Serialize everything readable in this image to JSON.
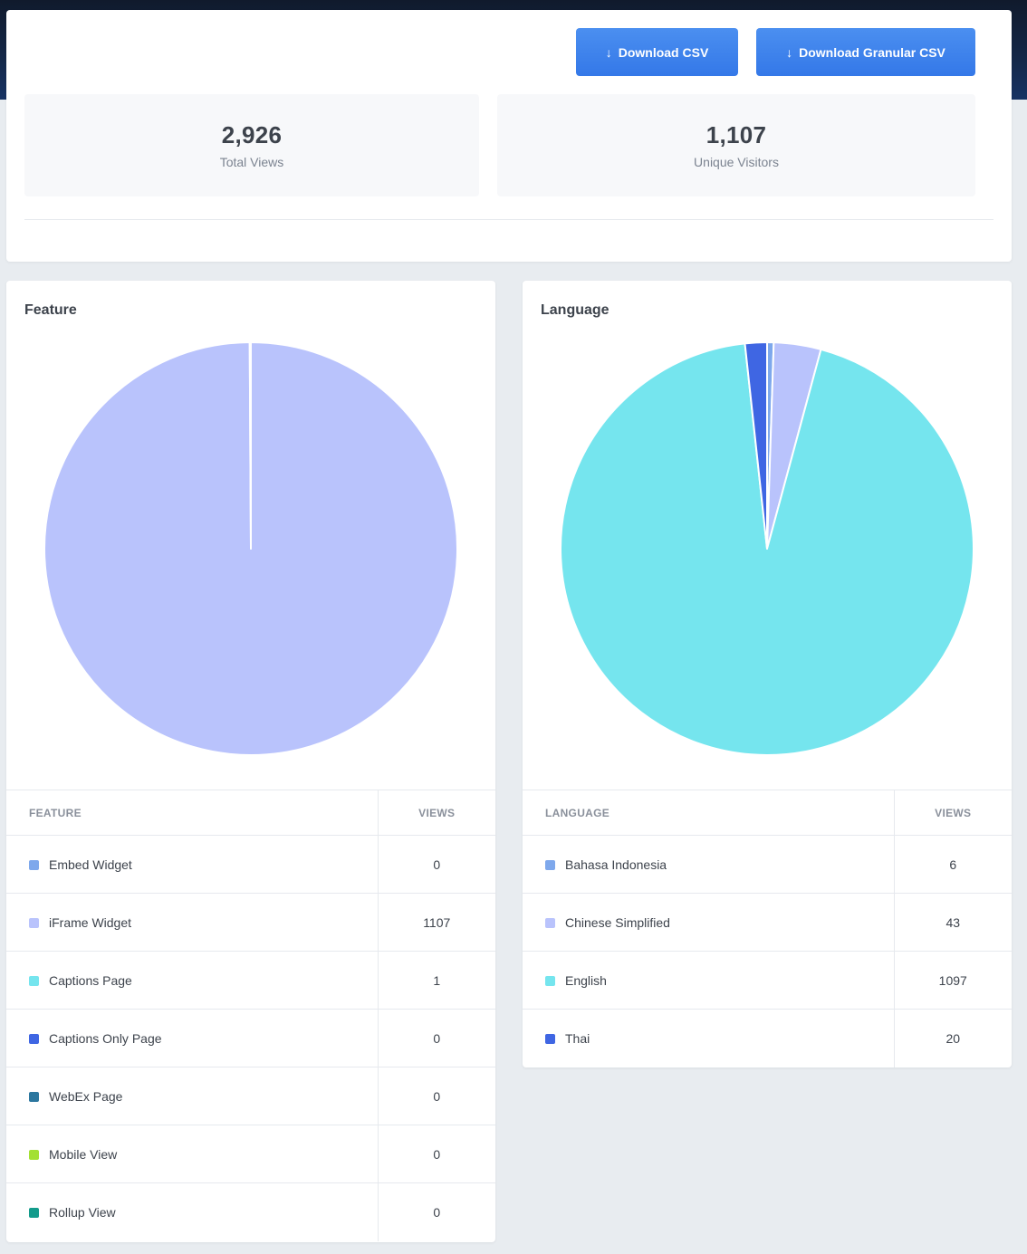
{
  "actions": {
    "download_csv_label": "Download CSV",
    "download_granular_label": "Download Granular CSV",
    "arrow_icon": "arrow-down-icon"
  },
  "stats": {
    "total_views": {
      "value": "2,926",
      "label": "Total Views"
    },
    "unique_visitors": {
      "value": "1,107",
      "label": "Unique Visitors"
    }
  },
  "feature": {
    "title": "Feature",
    "table_headers": {
      "name": "Feature",
      "views": "Views"
    },
    "rows": [
      {
        "name": "Embed Widget",
        "views": "0",
        "color": "#7ea8ec"
      },
      {
        "name": "iFrame Widget",
        "views": "1107",
        "color": "#b9c3fc"
      },
      {
        "name": "Captions Page",
        "views": "1",
        "color": "#75e5ee"
      },
      {
        "name": "Captions Only Page",
        "views": "0",
        "color": "#3f66e3"
      },
      {
        "name": "WebEx Page",
        "views": "0",
        "color": "#2c779f"
      },
      {
        "name": "Mobile View",
        "views": "0",
        "color": "#a3e033"
      },
      {
        "name": "Rollup View",
        "views": "0",
        "color": "#139b8b"
      }
    ]
  },
  "language": {
    "title": "Language",
    "table_headers": {
      "name": "Language",
      "views": "Views"
    },
    "rows": [
      {
        "name": "Bahasa Indonesia",
        "views": "6",
        "color": "#7ea8ec"
      },
      {
        "name": "Chinese Simplified",
        "views": "43",
        "color": "#b9c3fc"
      },
      {
        "name": "English",
        "views": "1097",
        "color": "#75e5ee"
      },
      {
        "name": "Thai",
        "views": "20",
        "color": "#3f66e3"
      }
    ]
  },
  "chart_data": [
    {
      "type": "pie",
      "title": "Feature",
      "categories": [
        "Embed Widget",
        "iFrame Widget",
        "Captions Page",
        "Captions Only Page",
        "WebEx Page",
        "Mobile View",
        "Rollup View"
      ],
      "values": [
        0,
        1107,
        1,
        0,
        0,
        0,
        0
      ],
      "colors": [
        "#7ea8ec",
        "#b9c3fc",
        "#75e5ee",
        "#3f66e3",
        "#2c779f",
        "#a3e033",
        "#139b8b"
      ]
    },
    {
      "type": "pie",
      "title": "Language",
      "categories": [
        "Bahasa Indonesia",
        "Chinese Simplified",
        "English",
        "Thai"
      ],
      "values": [
        6,
        43,
        1097,
        20
      ],
      "colors": [
        "#7ea8ec",
        "#b9c3fc",
        "#75e5ee",
        "#3f66e3"
      ]
    }
  ]
}
